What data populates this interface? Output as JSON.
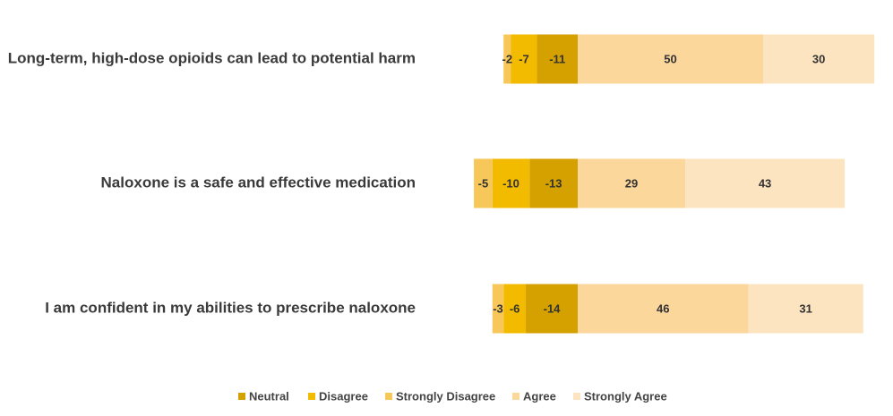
{
  "chart_data": {
    "type": "bar",
    "orientation": "horizontal",
    "stacked": "diverging",
    "categories": [
      "Long-term, high-dose opioids can lead to potential harm",
      "Naloxone is a safe and effective medication",
      "I am confident in my abilities to prescribe naloxone"
    ],
    "series": [
      {
        "name": "Neutral",
        "color": "#d4a100",
        "values": [
          -11,
          -13,
          -14
        ]
      },
      {
        "name": "Disagree",
        "color": "#f2bb00",
        "values": [
          -7,
          -10,
          -6
        ]
      },
      {
        "name": "Strongly Disagree",
        "color": "#f7c75a",
        "values": [
          -2,
          -5,
          -3
        ]
      },
      {
        "name": "Agree",
        "color": "#fcd79c",
        "values": [
          50,
          29,
          46
        ]
      },
      {
        "name": "Strongly Agree",
        "color": "#fde4c0",
        "values": [
          30,
          43,
          31
        ]
      }
    ],
    "legend_position": "bottom",
    "grid": false
  }
}
